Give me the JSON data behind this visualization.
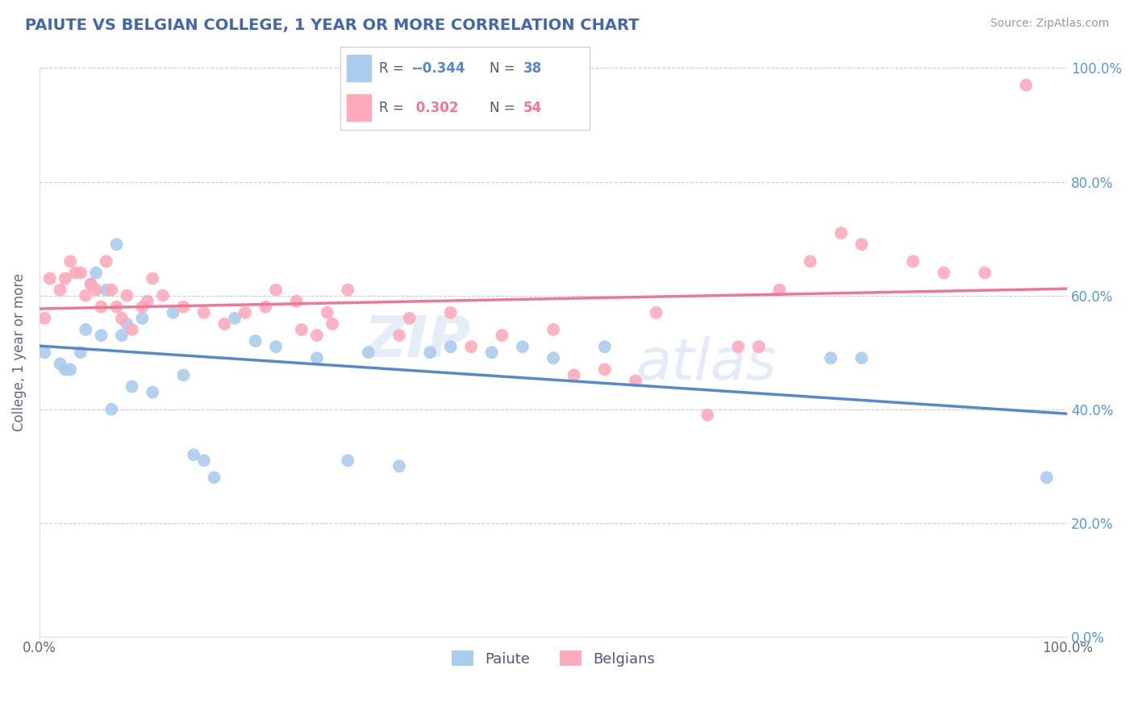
{
  "title": "PAIUTE VS BELGIAN COLLEGE, 1 YEAR OR MORE CORRELATION CHART",
  "source_text": "Source: ZipAtlas.com",
  "ylabel": "College, 1 year or more",
  "xlim": [
    0.0,
    1.0
  ],
  "ylim": [
    0.0,
    1.0
  ],
  "right_ytick_labels": [
    "0.0%",
    "20.0%",
    "40.0%",
    "60.0%",
    "80.0%",
    "100.0%"
  ],
  "ytick_values": [
    0.0,
    0.2,
    0.4,
    0.6,
    0.8,
    1.0
  ],
  "xtick_values": [
    0.0,
    1.0
  ],
  "xtick_labels": [
    "0.0%",
    "100.0%"
  ],
  "grid_color": "#cccccc",
  "background_color": "#ffffff",
  "watermark_zip": "ZIP",
  "watermark_atlas": "atlas",
  "paiute_color": "#aaccee",
  "belgians_color": "#ffaabb",
  "line_paiute_color": "#5588cc",
  "line_belgians_color": "#ee7799",
  "right_tick_color": "#5599dd",
  "paiute_x": [
    0.005,
    0.02,
    0.025,
    0.03,
    0.04,
    0.045,
    0.05,
    0.055,
    0.06,
    0.065,
    0.07,
    0.075,
    0.08,
    0.085,
    0.09,
    0.1,
    0.11,
    0.13,
    0.14,
    0.15,
    0.16,
    0.17,
    0.19,
    0.21,
    0.23,
    0.27,
    0.3,
    0.32,
    0.35,
    0.38,
    0.4,
    0.44,
    0.47,
    0.5,
    0.55,
    0.77,
    0.8,
    0.98
  ],
  "paiute_y": [
    0.5,
    0.48,
    0.47,
    0.47,
    0.5,
    0.54,
    0.62,
    0.64,
    0.53,
    0.61,
    0.4,
    0.69,
    0.53,
    0.55,
    0.44,
    0.56,
    0.43,
    0.57,
    0.46,
    0.32,
    0.31,
    0.28,
    0.56,
    0.52,
    0.51,
    0.49,
    0.31,
    0.5,
    0.3,
    0.5,
    0.51,
    0.5,
    0.51,
    0.49,
    0.51,
    0.49,
    0.49,
    0.28
  ],
  "belgians_x": [
    0.005,
    0.01,
    0.02,
    0.025,
    0.03,
    0.035,
    0.04,
    0.045,
    0.05,
    0.055,
    0.06,
    0.065,
    0.07,
    0.075,
    0.08,
    0.085,
    0.09,
    0.1,
    0.105,
    0.11,
    0.12,
    0.14,
    0.16,
    0.18,
    0.2,
    0.22,
    0.23,
    0.25,
    0.255,
    0.27,
    0.28,
    0.285,
    0.3,
    0.35,
    0.36,
    0.4,
    0.42,
    0.45,
    0.5,
    0.52,
    0.55,
    0.58,
    0.6,
    0.65,
    0.68,
    0.7,
    0.72,
    0.75,
    0.78,
    0.8,
    0.85,
    0.88,
    0.92,
    0.96
  ],
  "belgians_y": [
    0.56,
    0.63,
    0.61,
    0.63,
    0.66,
    0.64,
    0.64,
    0.6,
    0.62,
    0.61,
    0.58,
    0.66,
    0.61,
    0.58,
    0.56,
    0.6,
    0.54,
    0.58,
    0.59,
    0.63,
    0.6,
    0.58,
    0.57,
    0.55,
    0.57,
    0.58,
    0.61,
    0.59,
    0.54,
    0.53,
    0.57,
    0.55,
    0.61,
    0.53,
    0.56,
    0.57,
    0.51,
    0.53,
    0.54,
    0.46,
    0.47,
    0.45,
    0.57,
    0.39,
    0.51,
    0.51,
    0.61,
    0.66,
    0.71,
    0.69,
    0.66,
    0.64,
    0.64,
    0.97
  ],
  "legend_r1": "-0.344",
  "legend_n1": "38",
  "legend_r2": "0.302",
  "legend_n2": "54"
}
